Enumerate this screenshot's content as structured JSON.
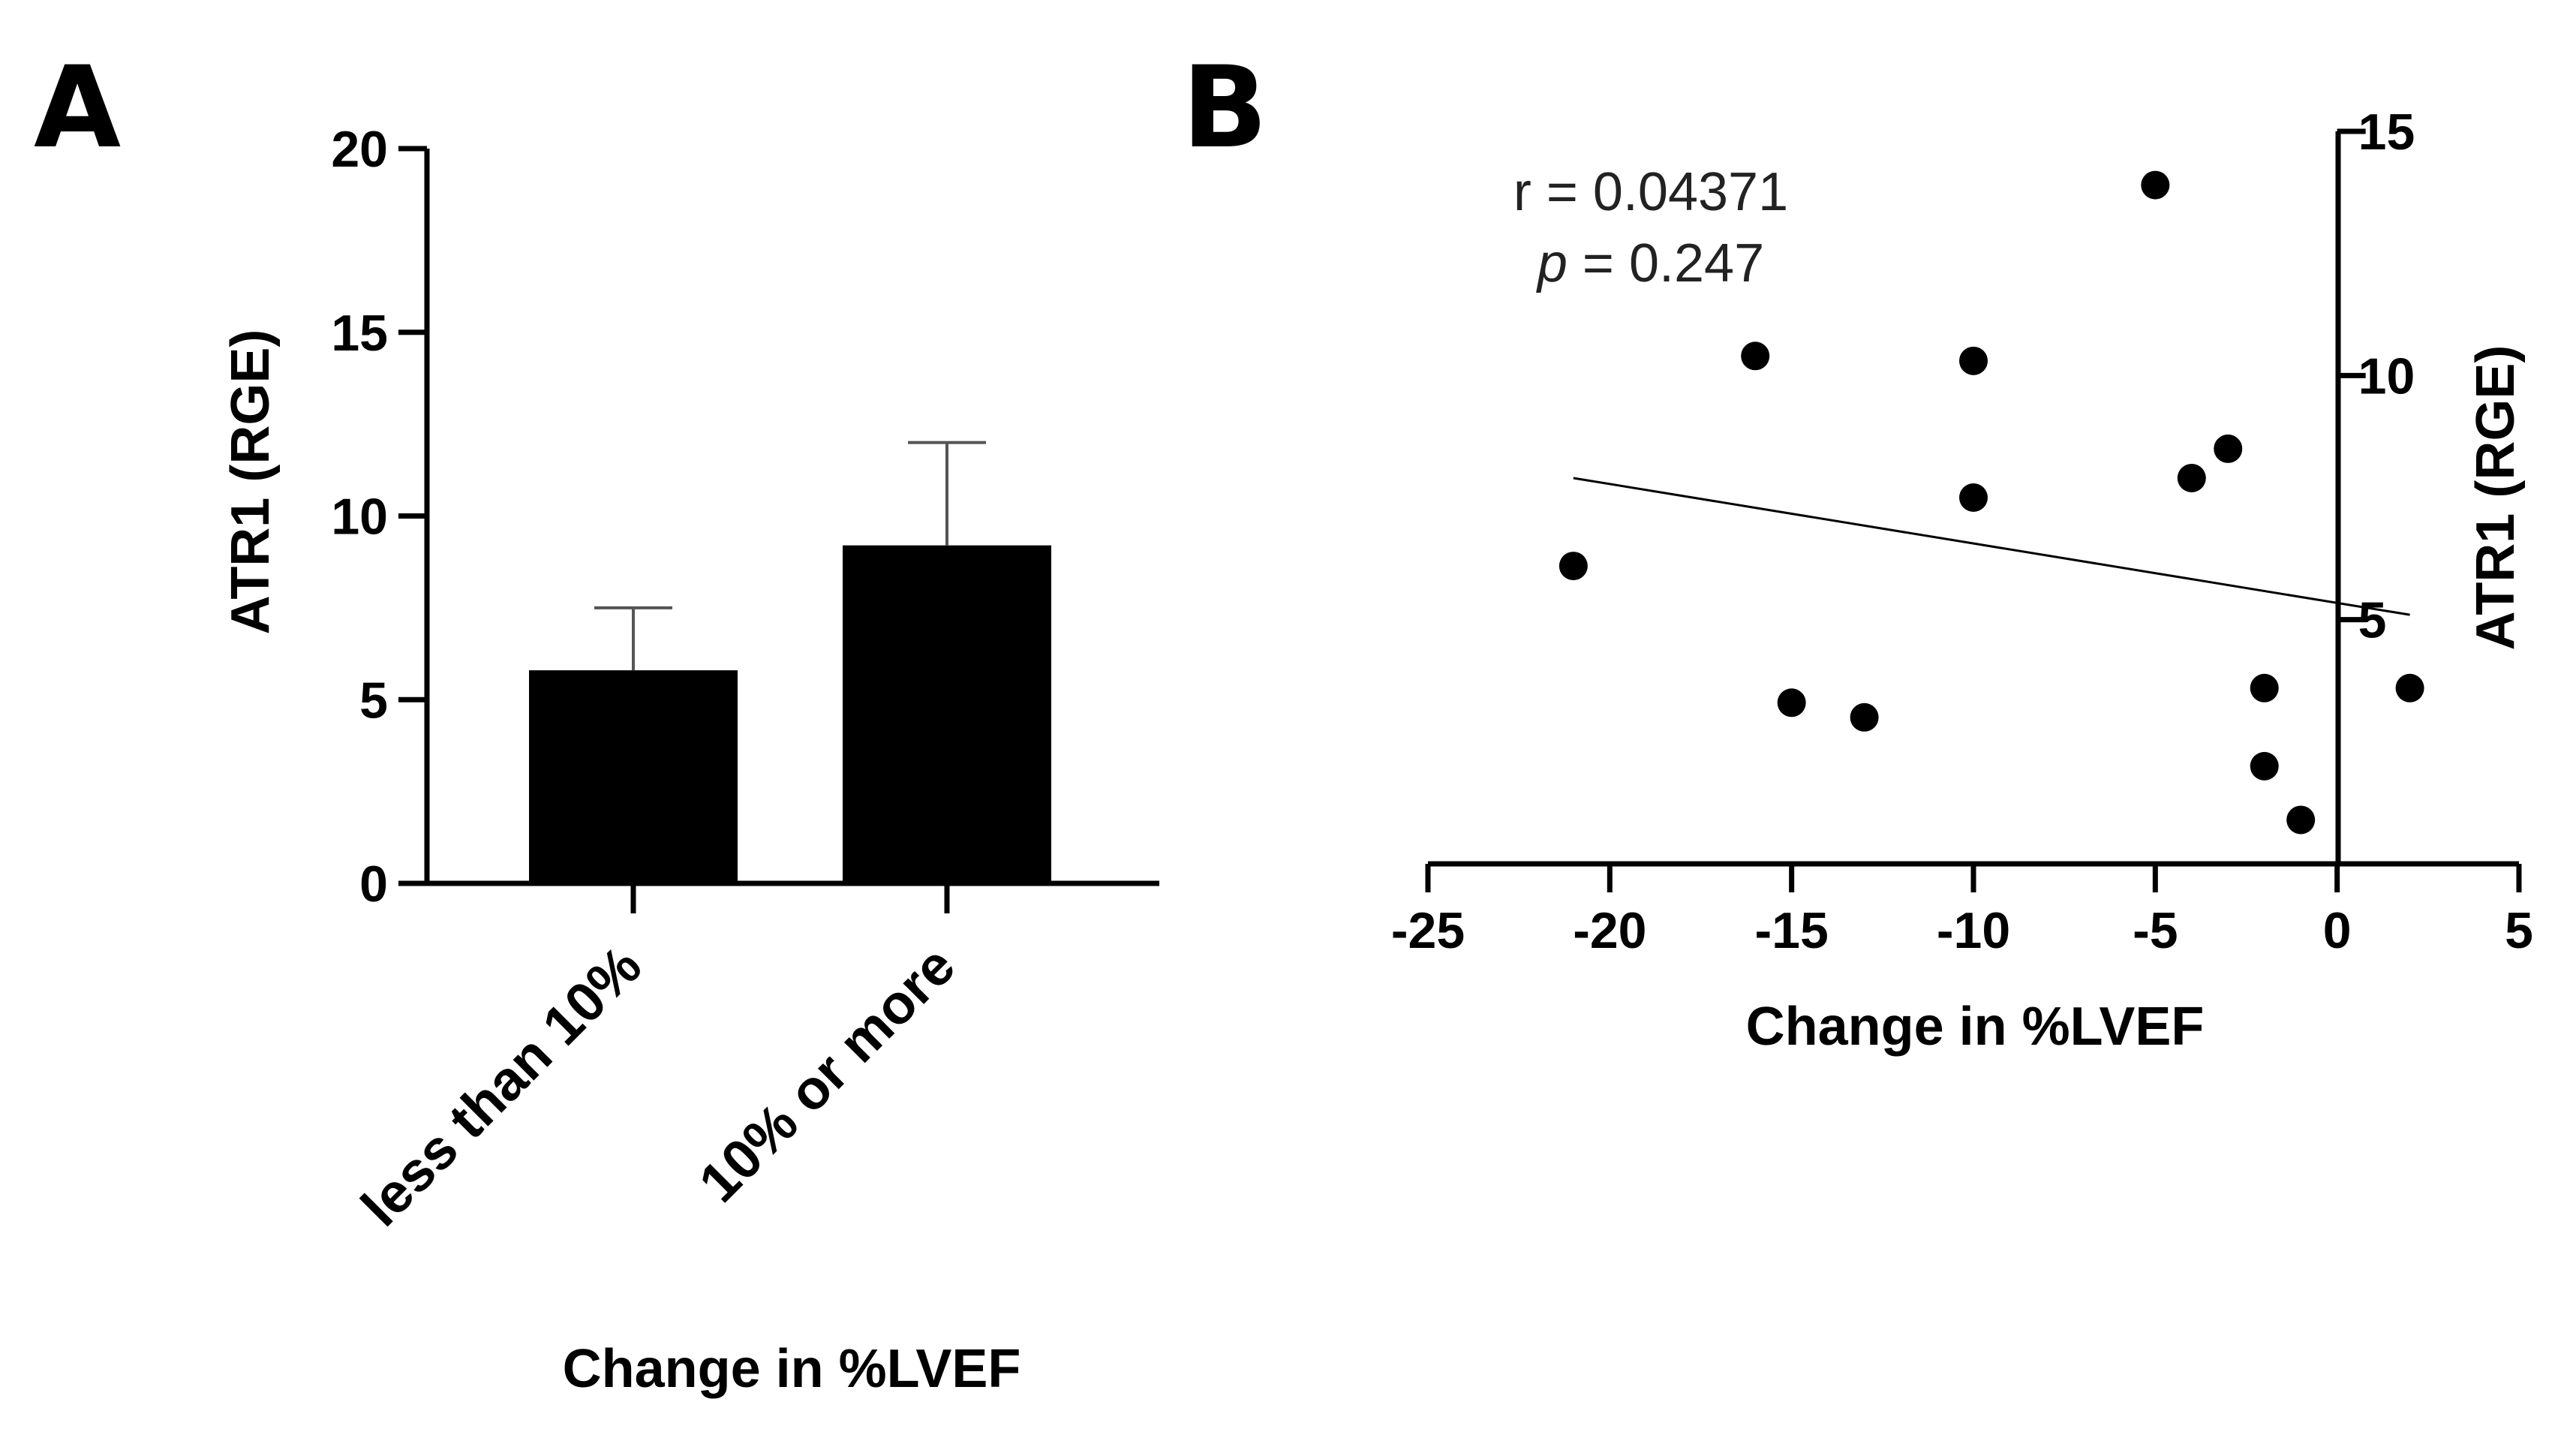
{
  "panels": {
    "a": "A",
    "b": "B"
  },
  "chart_data": [
    {
      "type": "bar",
      "panel": "A",
      "categories": [
        "less than 10%",
        "10% or more"
      ],
      "values": [
        5.8,
        9.2
      ],
      "error_upper": [
        7.5,
        12.0
      ],
      "xlabel": "Change in %LVEF",
      "ylabel": "ATR1 (RGE)",
      "ylim": [
        0,
        20
      ],
      "yticks": [
        "0",
        "5",
        "10",
        "15",
        "20"
      ],
      "colors": {
        "bar": "#000000",
        "error_bar": "#555555"
      }
    },
    {
      "type": "scatter",
      "panel": "B",
      "xlabel": "Change in %LVEF",
      "ylabel": "ATR1 (RGE)",
      "xlim": [
        -25,
        5
      ],
      "ylim": [
        0,
        15
      ],
      "xticks": [
        "-25",
        "-20",
        "-15",
        "-10",
        "-5",
        "0",
        "5"
      ],
      "yticks": [
        "5",
        "10",
        "15"
      ],
      "points": [
        {
          "x": -5,
          "y": 13.9
        },
        {
          "x": -16,
          "y": 10.4
        },
        {
          "x": -10,
          "y": 10.3
        },
        {
          "x": -3,
          "y": 8.5
        },
        {
          "x": -4,
          "y": 7.9
        },
        {
          "x": -10,
          "y": 7.5
        },
        {
          "x": -21,
          "y": 6.1
        },
        {
          "x": -2,
          "y": 3.6
        },
        {
          "x": 2,
          "y": 3.6
        },
        {
          "x": -15,
          "y": 3.3
        },
        {
          "x": -13,
          "y": 3.0
        },
        {
          "x": -2,
          "y": 2.0
        },
        {
          "x": -1,
          "y": 0.9
        }
      ],
      "fit_line": {
        "x": [
          -21,
          2
        ],
        "y": [
          7.9,
          5.1
        ]
      },
      "annotation": {
        "r_text": "r = 0.04371",
        "p_label": "p",
        "p_value": " = 0.247"
      },
      "colors": {
        "marker": "#000000",
        "fit": "#000000"
      }
    }
  ]
}
